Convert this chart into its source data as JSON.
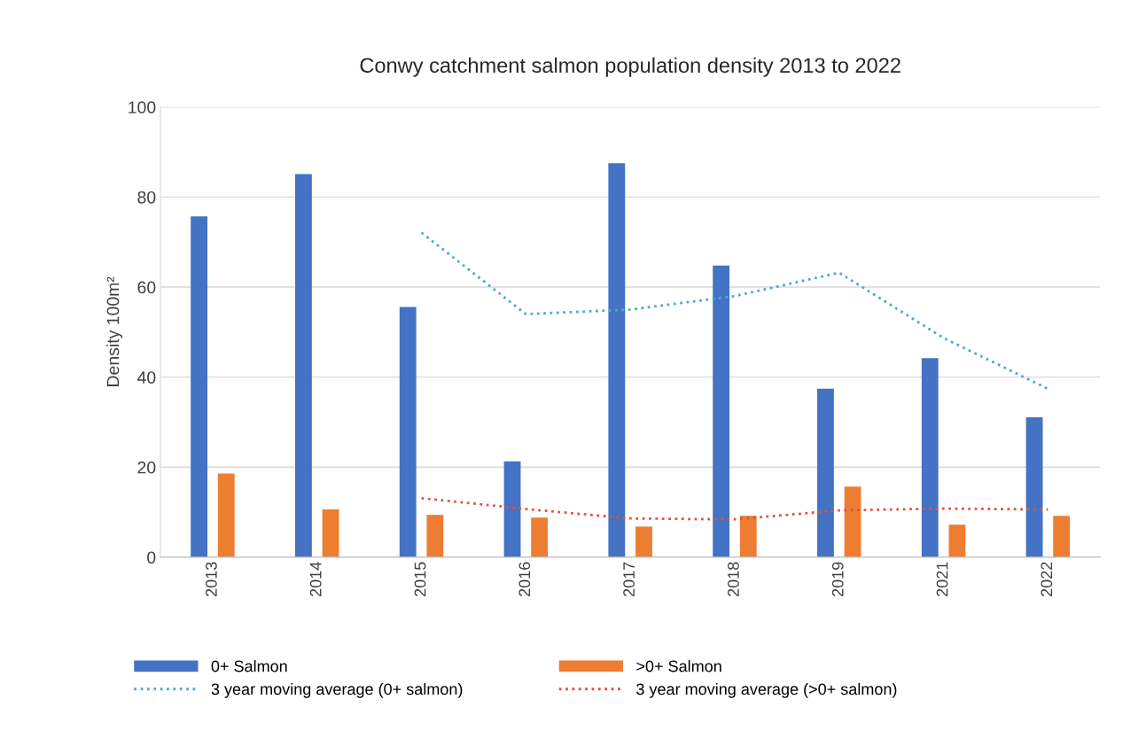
{
  "chart_data": {
    "type": "bar",
    "title": "Conwy catchment salmon population density 2013 to 2022",
    "ylabel": "Density 100m²",
    "categories": [
      "2013",
      "2014",
      "2015",
      "2016",
      "2017",
      "2018",
      "2019",
      "2021",
      "2022"
    ],
    "series": [
      {
        "name": "0+ Salmon",
        "color": "#4472c4",
        "values": [
          75.7,
          85.1,
          55.6,
          21.3,
          87.5,
          64.8,
          37.4,
          44.2,
          31.1
        ]
      },
      {
        "name": ">0+ Salmon",
        "color": "#ed7d31",
        "values": [
          18.6,
          10.6,
          9.4,
          8.8,
          6.8,
          9.2,
          15.7,
          7.2,
          9.2
        ]
      },
      {
        "name": "3 year moving average (0+ salmon)",
        "type": "line",
        "color": "#4bacc6",
        "line_style": "dotted",
        "values": [
          null,
          null,
          72.1,
          54.0,
          55.0,
          58.0,
          63.2,
          48.7,
          37.4
        ]
      },
      {
        "name": "3 year moving average (>0+ salmon)",
        "type": "line",
        "color": "#e0533f",
        "line_style": "dotted",
        "values": [
          null,
          null,
          13.1,
          10.7,
          8.6,
          8.4,
          10.4,
          10.8,
          10.6
        ]
      }
    ],
    "ylim": [
      0,
      100
    ],
    "yticks": [
      0,
      20,
      40,
      60,
      80,
      100
    ],
    "grid": "y",
    "legend": "bottom"
  }
}
